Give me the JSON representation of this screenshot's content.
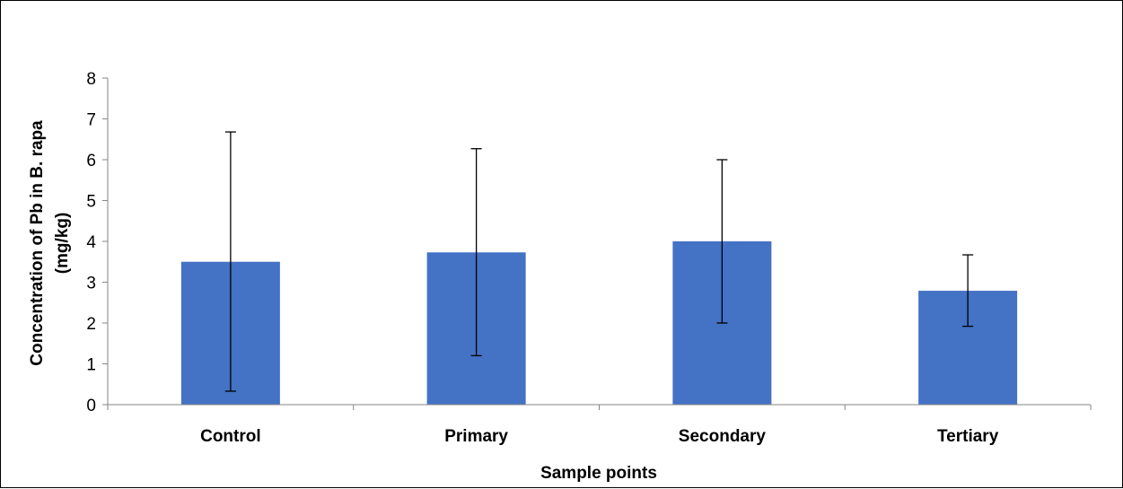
{
  "chart_data": {
    "type": "bar",
    "categories": [
      "Control",
      "Primary",
      "Secondary",
      "Tertiary"
    ],
    "values": [
      3.5,
      3.73,
      4.0,
      2.79
    ],
    "error_bars": [
      {
        "low": 0.33,
        "high": 6.68
      },
      {
        "low": 1.2,
        "high": 6.27
      },
      {
        "low": 2.0,
        "high": 6.0
      },
      {
        "low": 1.92,
        "high": 3.67
      }
    ],
    "title": "",
    "xlabel": "Sample points",
    "ylabel_line1": "Concentration of Pb  in B. rapa",
    "ylabel_line2": "(mg/kg)",
    "ylim": [
      0,
      8
    ],
    "yticks": [
      "0",
      "1",
      "2",
      "3",
      "4",
      "5",
      "6",
      "7",
      "8"
    ],
    "grid": false,
    "legend": "none",
    "colors": {
      "bar": "#4472C4",
      "axis": "#868686",
      "errorbar": "#000000",
      "ylabel_unit": "#C00000",
      "text": "#000000"
    }
  }
}
